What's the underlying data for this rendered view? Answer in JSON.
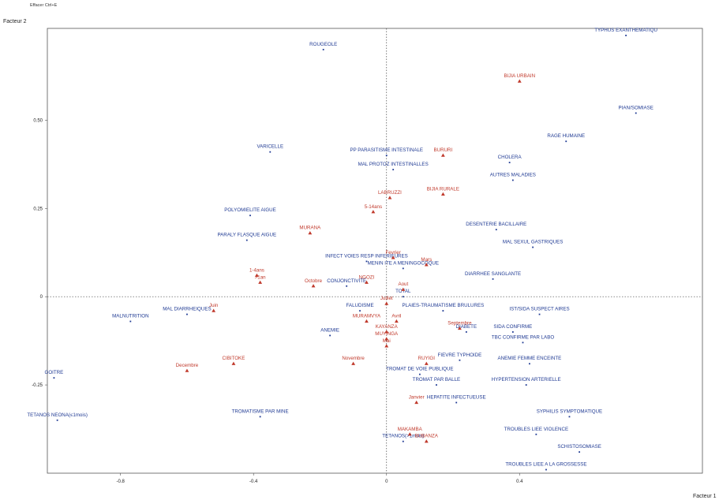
{
  "header": {
    "caption": "Effacer Ctrl+E"
  },
  "colors": {
    "rows": "#1f3a93",
    "cols": "#c0392b",
    "frame": "#555555"
  },
  "chart_data": {
    "type": "scatter",
    "title": "",
    "xlabel": "Facteur 1",
    "ylabel": "Facteur 2",
    "xlim": [
      -1.02,
      0.95
    ],
    "ylim": [
      -0.5,
      0.76
    ],
    "x_ticks": [
      {
        "v": -0.8,
        "t": "-0.8"
      },
      {
        "v": -0.4,
        "t": "-0.4"
      },
      {
        "v": 0,
        "t": "0"
      },
      {
        "v": 0.4,
        "t": "0.4"
      }
    ],
    "y_ticks": [
      {
        "v": 0.5,
        "t": "0.50"
      },
      {
        "v": 0.25,
        "t": "0.25"
      },
      {
        "v": 0,
        "t": "0"
      },
      {
        "v": -0.25,
        "t": "-0.25"
      }
    ],
    "series": [
      {
        "group": "rows",
        "points": [
          {
            "label": "TYPHUS EXANTHEMATIQU",
            "x": 0.72,
            "y": 0.74
          },
          {
            "label": "ROUGEOLE",
            "x": -0.19,
            "y": 0.7
          },
          {
            "label": "PIAN/SOMIASE",
            "x": 0.75,
            "y": 0.52
          },
          {
            "label": "RAGE HUMAINE",
            "x": 0.54,
            "y": 0.44
          },
          {
            "label": "VARICELLE",
            "x": -0.35,
            "y": 0.41
          },
          {
            "label": "PP PARASITISME INTESTINALE",
            "x": 0.0,
            "y": 0.4
          },
          {
            "label": "CHOLERA",
            "x": 0.37,
            "y": 0.38
          },
          {
            "label": "MAL PROTOZ INTESTINALLES",
            "x": 0.02,
            "y": 0.36
          },
          {
            "label": "AUTRES MALADIES",
            "x": 0.38,
            "y": 0.33
          },
          {
            "label": "POLYOMIELITE AIGUE",
            "x": -0.41,
            "y": 0.23
          },
          {
            "label": "DESENTERIE BACILLAIRE",
            "x": 0.33,
            "y": 0.19
          },
          {
            "label": "PARALY FLASQUE AIGUE",
            "x": -0.42,
            "y": 0.16
          },
          {
            "label": "MAL SEXUL GASTRIQUES",
            "x": 0.44,
            "y": 0.14
          },
          {
            "label": "INFECT VOIES RESP INFERIEURES",
            "x": -0.06,
            "y": 0.1
          },
          {
            "label": "MENIN ITE A MENINGOCOQUE",
            "x": 0.05,
            "y": 0.08
          },
          {
            "label": "DIARRHEE SANGLANTE",
            "x": 0.32,
            "y": 0.05
          },
          {
            "label": "CONJONCTIVITE",
            "x": -0.12,
            "y": 0.03
          },
          {
            "label": "TOTAL",
            "x": 0.05,
            "y": 0.0
          },
          {
            "label": "FALUDISME",
            "x": -0.08,
            "y": -0.04
          },
          {
            "label": "MAL DIARRHEIQUES",
            "x": -0.6,
            "y": -0.05
          },
          {
            "label": "PLAIES-TRAUMATISME BRULURES",
            "x": 0.17,
            "y": -0.04
          },
          {
            "label": "IST/SIDA SUSPECT AIRES",
            "x": 0.46,
            "y": -0.05
          },
          {
            "label": "MALNUTRITION",
            "x": -0.77,
            "y": -0.07
          },
          {
            "label": "DIABETE",
            "x": 0.24,
            "y": -0.1
          },
          {
            "label": "SIDA CONFIRME",
            "x": 0.38,
            "y": -0.1
          },
          {
            "label": "ANEMIE",
            "x": -0.17,
            "y": -0.11
          },
          {
            "label": "TBC CONFIRME PAR LABO",
            "x": 0.41,
            "y": -0.13
          },
          {
            "label": "ANEMIE FEMME ENCEINTE",
            "x": 0.43,
            "y": -0.19
          },
          {
            "label": "FIEVRE TYPHOIDE",
            "x": 0.22,
            "y": -0.18
          },
          {
            "label": "TROMAT DE VOIE PUBLIQUE",
            "x": 0.1,
            "y": -0.22
          },
          {
            "label": "GOITRE",
            "x": -1.0,
            "y": -0.23
          },
          {
            "label": "HYPERTENSION ARTERIELLE",
            "x": 0.42,
            "y": -0.25
          },
          {
            "label": "TROMAT PAR BALLE",
            "x": 0.15,
            "y": -0.25
          },
          {
            "label": "HEPATITE INFECTUEUSE",
            "x": 0.21,
            "y": -0.3
          },
          {
            "label": "TETANOS NEONA(≤1mois)",
            "x": -0.99,
            "y": -0.35
          },
          {
            "label": "TROMATISME PAR MINE",
            "x": -0.38,
            "y": -0.34
          },
          {
            "label": "SYPHILIS SYMPTOMATIQUE",
            "x": 0.55,
            "y": -0.34
          },
          {
            "label": "TROUBLES LIEE VIOLENCE",
            "x": 0.45,
            "y": -0.39
          },
          {
            "label": "TETANOS(>1mois)",
            "x": 0.05,
            "y": -0.41
          },
          {
            "label": "SCHISTOSOMIASE",
            "x": 0.58,
            "y": -0.44
          },
          {
            "label": "TROUBLES LIEE A LA GROSSESSE",
            "x": 0.48,
            "y": -0.49
          }
        ]
      },
      {
        "group": "cols",
        "points": [
          {
            "label": "BIJIA URBAIN",
            "x": 0.4,
            "y": 0.61
          },
          {
            "label": "BURURI",
            "x": 0.17,
            "y": 0.4
          },
          {
            "label": "LABRUZZI",
            "x": 0.01,
            "y": 0.28
          },
          {
            "label": "BIJIA RURALE",
            "x": 0.17,
            "y": 0.29
          },
          {
            "label": "5-14ans",
            "x": -0.04,
            "y": 0.24
          },
          {
            "label": "MURANA",
            "x": -0.23,
            "y": 0.18
          },
          {
            "label": "Fevrier",
            "x": 0.02,
            "y": 0.11
          },
          {
            "label": "Mars",
            "x": 0.12,
            "y": 0.09
          },
          {
            "label": "1-4ans",
            "x": -0.39,
            "y": 0.06
          },
          {
            "label": "NGOZI",
            "x": -0.06,
            "y": 0.04
          },
          {
            "label": "Aout",
            "x": 0.05,
            "y": 0.02
          },
          {
            "label": ">1an",
            "x": -0.38,
            "y": 0.04
          },
          {
            "label": "Octobre",
            "x": -0.22,
            "y": 0.03
          },
          {
            "label": "Juillet",
            "x": 0.0,
            "y": -0.02
          },
          {
            "label": "Juin",
            "x": -0.52,
            "y": -0.04
          },
          {
            "label": "Avril",
            "x": 0.03,
            "y": -0.07
          },
          {
            "label": "MURAMVYA",
            "x": -0.06,
            "y": -0.07
          },
          {
            "label": "KAYANZA",
            "x": 0.0,
            "y": -0.1
          },
          {
            "label": "MUYINGA",
            "x": 0.0,
            "y": -0.12
          },
          {
            "label": "Mai",
            "x": 0.0,
            "y": -0.14
          },
          {
            "label": "CIBITOKE",
            "x": -0.46,
            "y": -0.19
          },
          {
            "label": "Novembre",
            "x": -0.1,
            "y": -0.19
          },
          {
            "label": "Decembre",
            "x": -0.6,
            "y": -0.21
          },
          {
            "label": "RUYIGI",
            "x": 0.12,
            "y": -0.19
          },
          {
            "label": "Septembre",
            "x": 0.22,
            "y": -0.09
          },
          {
            "label": "Janvier",
            "x": 0.09,
            "y": -0.3
          },
          {
            "label": "MAKAMBA",
            "x": 0.07,
            "y": -0.39
          },
          {
            "label": "BUBANZA",
            "x": 0.12,
            "y": -0.41
          }
        ]
      }
    ]
  }
}
